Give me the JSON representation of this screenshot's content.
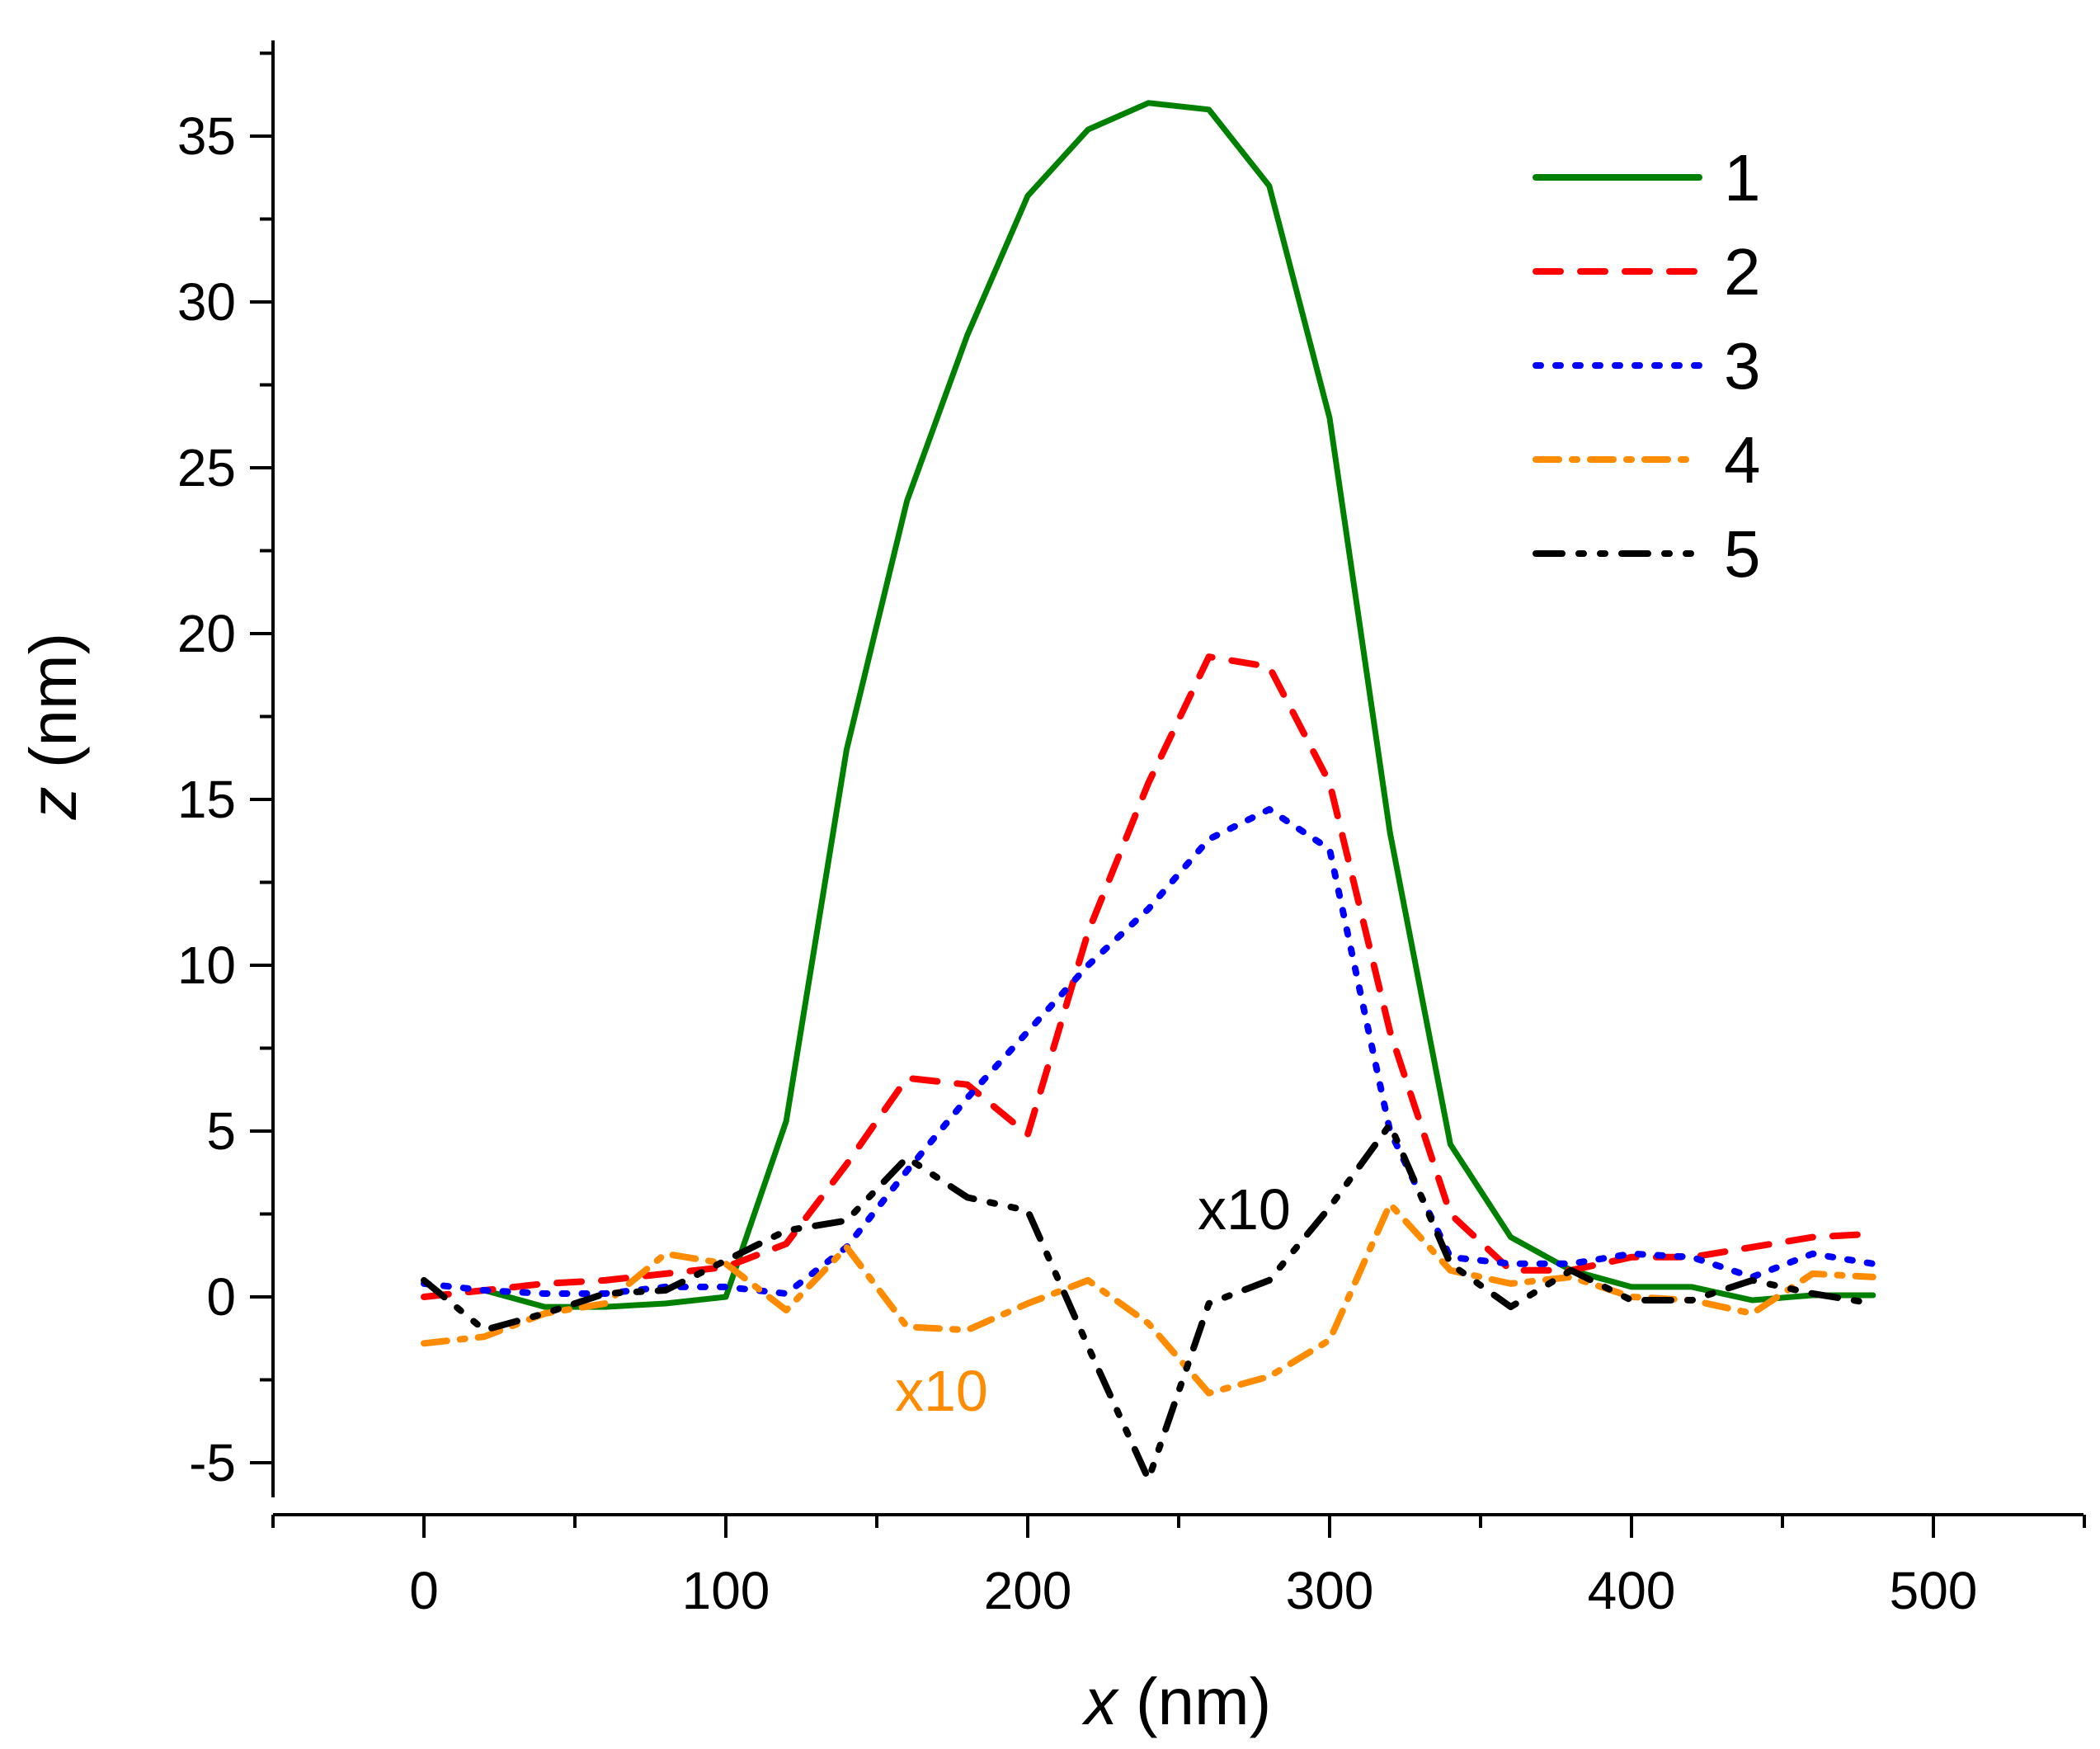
{
  "chart_data": {
    "type": "line",
    "title": "",
    "xlabel_var": "x",
    "xlabel_unit": " (nm)",
    "ylabel_var": "z",
    "ylabel_unit": " (nm)",
    "xlim": [
      -50,
      550
    ],
    "ylim": [
      -6,
      38
    ],
    "x_ticks": [
      0,
      100,
      200,
      300,
      400,
      500
    ],
    "y_ticks": [
      -5,
      0,
      5,
      10,
      15,
      20,
      25,
      30,
      35
    ],
    "grid": false,
    "legend_position": "top-right",
    "x": [
      0,
      20,
      40,
      60,
      80,
      100,
      120,
      140,
      160,
      180,
      200,
      220,
      240,
      260,
      280,
      300,
      320,
      340,
      360,
      380,
      400,
      420,
      440,
      460,
      480
    ],
    "series": [
      {
        "name": "1",
        "color": "#008000",
        "dash": "solid",
        "values": [
          null,
          0.2,
          -0.3,
          -0.3,
          -0.2,
          0,
          5.3,
          16.5,
          24,
          29,
          33.2,
          35.2,
          36,
          35.8,
          33.5,
          26.5,
          14,
          4.6,
          1.8,
          0.8,
          0.3,
          0.3,
          -0.1,
          0.05,
          0.05
        ]
      },
      {
        "name": "2",
        "color": "#ff0000",
        "dash": "dash",
        "values": [
          0,
          0.2,
          0.4,
          0.5,
          0.7,
          0.9,
          1.6,
          4,
          6.6,
          6.4,
          4.9,
          11,
          15.5,
          19.3,
          19,
          15.5,
          8,
          2.5,
          0.8,
          0.8,
          1.2,
          1.2,
          1.5,
          1.8,
          1.9
        ]
      },
      {
        "name": "3",
        "color": "#0000ff",
        "dash": "dot",
        "values": [
          0.4,
          0.2,
          0.1,
          0.1,
          0.3,
          0.3,
          0.1,
          1.5,
          3.8,
          6,
          8,
          10,
          11.7,
          13.8,
          14.7,
          13.5,
          5,
          1.2,
          1.0,
          1.0,
          1.3,
          1.2,
          0.6,
          1.3,
          1.0
        ]
      },
      {
        "name": "4",
        "color": "#ff8c00",
        "dash": "dashdot",
        "values": [
          -1.4,
          -1.2,
          -0.5,
          -0.2,
          1.3,
          1.0,
          -0.4,
          1.5,
          -0.9,
          -1.0,
          -0.2,
          0.5,
          -0.8,
          -2.9,
          -2.4,
          -1.3,
          2.8,
          0.8,
          0.4,
          0.6,
          0,
          -0.1,
          -0.5,
          0.7,
          0.6
        ]
      },
      {
        "name": "5",
        "color": "#000000",
        "dash": "dashdotdot",
        "values": [
          0.5,
          -1.0,
          -0.5,
          0.1,
          0.2,
          1.1,
          2,
          2.3,
          4.2,
          3,
          2.6,
          -1.5,
          -5.5,
          -0.2,
          0.5,
          2.7,
          5.2,
          1.0,
          -0.3,
          0.8,
          -0.1,
          -0.1,
          0.5,
          0.1,
          -0.2
        ]
      }
    ],
    "annotations": [
      {
        "text": "x10",
        "color": "#000000",
        "series": "5",
        "at_x": 275,
        "at_y": 2.6
      },
      {
        "text": "x10",
        "color": "#ff8c00",
        "series": "4",
        "at_x": 173,
        "at_y": -2.8
      }
    ]
  }
}
